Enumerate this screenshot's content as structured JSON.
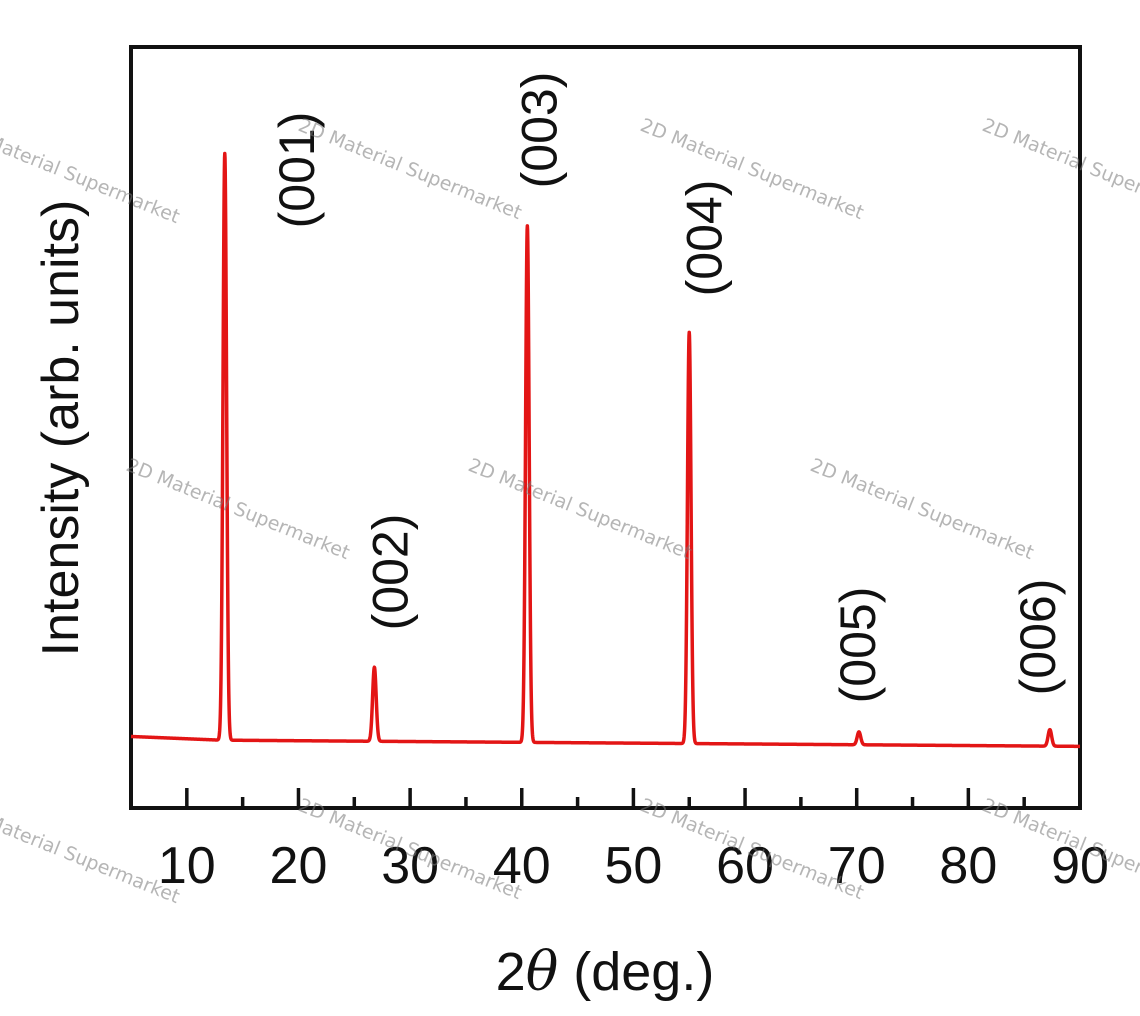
{
  "colors": {
    "line": "#e31515",
    "axis": "#111111",
    "background": "#ffffff",
    "watermark": "#7a7a7a"
  },
  "watermark_text": "2D Material Supermarket",
  "chart_data": {
    "type": "line",
    "title": "",
    "xlabel_prefix": "2",
    "xlabel_symbol": "θ",
    "xlabel_suffix": " (deg.)",
    "ylabel": "Intensity (arb. units)",
    "xlim": [
      5,
      90
    ],
    "ylim": [
      0,
      1.0
    ],
    "y_ticks_shown": false,
    "grid": false,
    "legend": "none",
    "x_ticks_major": [
      10,
      20,
      30,
      40,
      50,
      60,
      70,
      80,
      90
    ],
    "x_ticks_minor": [
      15,
      25,
      35,
      45,
      55,
      65,
      75,
      85
    ],
    "x_tick_labels": [
      "10",
      "20",
      "30",
      "40",
      "50",
      "60",
      "70",
      "80",
      "90"
    ],
    "baseline": {
      "x": [
        5,
        90
      ],
      "y": [
        0.09,
        0.081
      ]
    },
    "series": [
      {
        "peaks": [
          {
            "x": 13.4,
            "y": 0.86,
            "label": "(001)"
          },
          {
            "x": 26.8,
            "y": 0.185,
            "label": "(002)"
          },
          {
            "x": 40.5,
            "y": 0.765,
            "label": "(003)"
          },
          {
            "x": 55.0,
            "y": 0.625,
            "label": "(004)"
          },
          {
            "x": 70.2,
            "y": 0.1,
            "label": "(005)"
          },
          {
            "x": 87.3,
            "y": 0.103,
            "label": "(006)"
          }
        ]
      }
    ]
  }
}
